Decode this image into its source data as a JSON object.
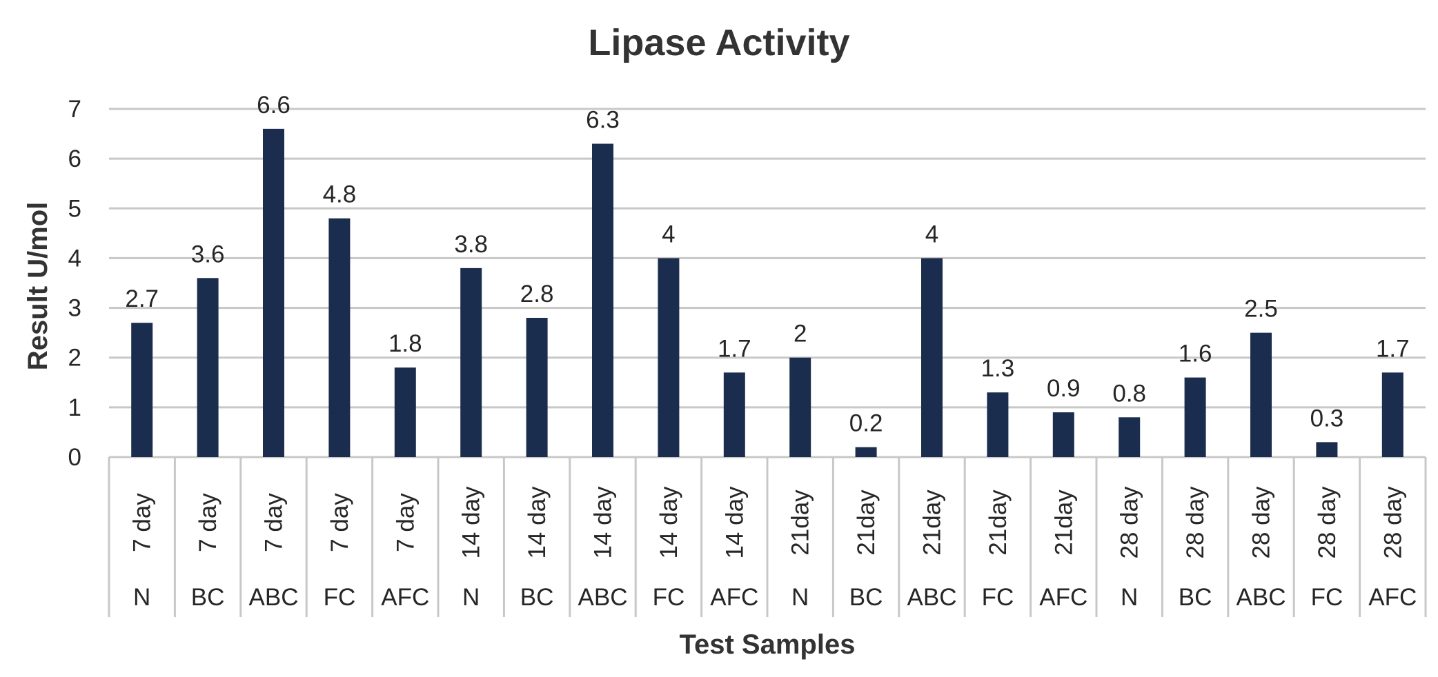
{
  "chart_data": {
    "type": "bar",
    "title": "Lipase Activity",
    "xlabel": "Test Samples",
    "ylabel": "Result U/mol",
    "ylim": [
      0,
      7
    ],
    "yticks": [
      "0",
      "1",
      "2",
      "3",
      "4",
      "5",
      "6",
      "7"
    ],
    "grid": true,
    "legend": "none",
    "bar_color": "#1b2d4f",
    "categories": [
      {
        "period": "7 day",
        "sample": "N"
      },
      {
        "period": "7 day",
        "sample": "BC"
      },
      {
        "period": "7 day",
        "sample": "ABC"
      },
      {
        "period": "7 day",
        "sample": "FC"
      },
      {
        "period": "7 day",
        "sample": "AFC"
      },
      {
        "period": "14 day",
        "sample": "N"
      },
      {
        "period": "14 day",
        "sample": "BC"
      },
      {
        "period": "14 day",
        "sample": "ABC"
      },
      {
        "period": "14 day",
        "sample": "FC"
      },
      {
        "period": "14 day",
        "sample": "AFC"
      },
      {
        "period": "21day",
        "sample": "N"
      },
      {
        "period": "21day",
        "sample": "BC"
      },
      {
        "period": "21day",
        "sample": "ABC"
      },
      {
        "period": "21day",
        "sample": "FC"
      },
      {
        "period": "21day",
        "sample": "AFC"
      },
      {
        "period": "28 day",
        "sample": "N"
      },
      {
        "period": "28 day",
        "sample": "BC"
      },
      {
        "period": "28 day",
        "sample": "ABC"
      },
      {
        "period": "28 day",
        "sample": "FC"
      },
      {
        "period": "28 day",
        "sample": "AFC"
      }
    ],
    "values": [
      2.7,
      3.6,
      6.6,
      4.8,
      1.8,
      3.8,
      2.8,
      6.3,
      4,
      1.7,
      2,
      0.2,
      4,
      1.3,
      0.9,
      0.8,
      1.6,
      2.5,
      0.3,
      1.7
    ],
    "data_labels": [
      "2.7",
      "3.6",
      "6.6",
      "4.8",
      "1.8",
      "3.8",
      "2.8",
      "6.3",
      "4",
      "1.7",
      "2",
      "0.2",
      "4",
      "1.3",
      "0.9",
      "0.8",
      "1.6",
      "2.5",
      "0.3",
      "1.7"
    ]
  }
}
